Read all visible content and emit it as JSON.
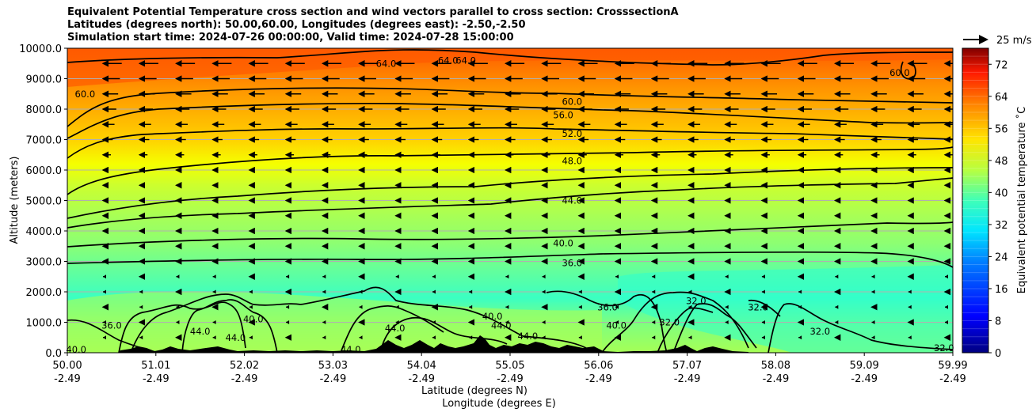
{
  "title_lines": [
    "Equivalent Potential Temperature cross section and wind vectors parallel to cross section: CrosssectionA",
    "Latitudes (degrees north): 50.00,60.00, Longitudes (degrees east): -2.50,-2.50",
    "Simulation start time: 2024-07-26 00:00:00, Valid time: 2024-07-28 15:00:00"
  ],
  "chart_data": {
    "type": "heatmap",
    "subtype": "contourf cross-section with contour lines and wind vectors",
    "ylabel": "Altitude (meters)",
    "xlabel_lines": [
      "Latitude (degrees N)",
      "Longitude (degrees E)"
    ],
    "y_ticks": [
      "0.0",
      "1000.0",
      "2000.0",
      "3000.0",
      "4000.0",
      "5000.0",
      "6000.0",
      "7000.0",
      "8000.0",
      "9000.0",
      "10000.0"
    ],
    "ylim": [
      0,
      10000
    ],
    "x_ticks": [
      {
        "lat": "50.00",
        "lon": "-2.49"
      },
      {
        "lat": "51.01",
        "lon": "-2.49"
      },
      {
        "lat": "52.02",
        "lon": "-2.49"
      },
      {
        "lat": "53.03",
        "lon": "-2.49"
      },
      {
        "lat": "54.04",
        "lon": "-2.49"
      },
      {
        "lat": "55.05",
        "lon": "-2.49"
      },
      {
        "lat": "56.06",
        "lon": "-2.49"
      },
      {
        "lat": "57.07",
        "lon": "-2.49"
      },
      {
        "lat": "58.08",
        "lon": "-2.49"
      },
      {
        "lat": "59.09",
        "lon": "-2.49"
      },
      {
        "lat": "59.99",
        "lon": "-2.49"
      }
    ],
    "colorbar": {
      "label": "Equivalent potential temperature $^\\circ$C",
      "label_display": "Equivalent potential temperature ˚C",
      "min": 0,
      "max": 76,
      "step": 2,
      "ticks": [
        "0",
        "8",
        "16",
        "24",
        "32",
        "40",
        "48",
        "56",
        "64",
        "72"
      ]
    },
    "quiver_key": {
      "label": "25 m/s"
    },
    "contour_labels": [
      {
        "text": "60.0",
        "x": 0.57,
        "y": 8.25
      },
      {
        "text": "56.0",
        "x": 0.56,
        "y": 7.8
      },
      {
        "text": "52.0",
        "x": 0.57,
        "y": 7.2
      },
      {
        "text": "48.0",
        "x": 0.57,
        "y": 6.3
      },
      {
        "text": "44.0",
        "x": 0.57,
        "y": 5.0
      },
      {
        "text": "40.0",
        "x": 0.56,
        "y": 3.6
      },
      {
        "text": "36.0",
        "x": 0.57,
        "y": 2.95
      },
      {
        "text": "60.0",
        "x": 0.02,
        "y": 8.5
      },
      {
        "text": "64.0",
        "x": 0.36,
        "y": 9.5
      },
      {
        "text": "64.0",
        "x": 0.43,
        "y": 9.6
      },
      {
        "text": "64.0",
        "x": 0.45,
        "y": 9.6
      },
      {
        "text": "60.0",
        "x": 0.94,
        "y": 9.2
      },
      {
        "text": "36.0",
        "x": 0.05,
        "y": 0.9
      },
      {
        "text": "40.0",
        "x": 0.01,
        "y": 0.1
      },
      {
        "text": "44.0",
        "x": 0.15,
        "y": 0.7
      },
      {
        "text": "44.0",
        "x": 0.19,
        "y": 0.5
      },
      {
        "text": "40.0",
        "x": 0.21,
        "y": 1.1
      },
      {
        "text": "44.0",
        "x": 0.32,
        "y": 0.1
      },
      {
        "text": "44.0",
        "x": 0.37,
        "y": 0.8
      },
      {
        "text": "40.0",
        "x": 0.48,
        "y": 1.2
      },
      {
        "text": "44.0",
        "x": 0.49,
        "y": 0.9
      },
      {
        "text": "44.0",
        "x": 0.52,
        "y": 0.55
      },
      {
        "text": "36.0",
        "x": 0.61,
        "y": 1.5
      },
      {
        "text": "40.0",
        "x": 0.62,
        "y": 0.9
      },
      {
        "text": "32.0",
        "x": 0.68,
        "y": 1.0
      },
      {
        "text": "32.0",
        "x": 0.71,
        "y": 1.7
      },
      {
        "text": "32.0",
        "x": 0.78,
        "y": 1.5
      },
      {
        "text": "32.0",
        "x": 0.85,
        "y": 0.7
      },
      {
        "text": "32.0",
        "x": 0.99,
        "y": 0.15
      }
    ]
  }
}
